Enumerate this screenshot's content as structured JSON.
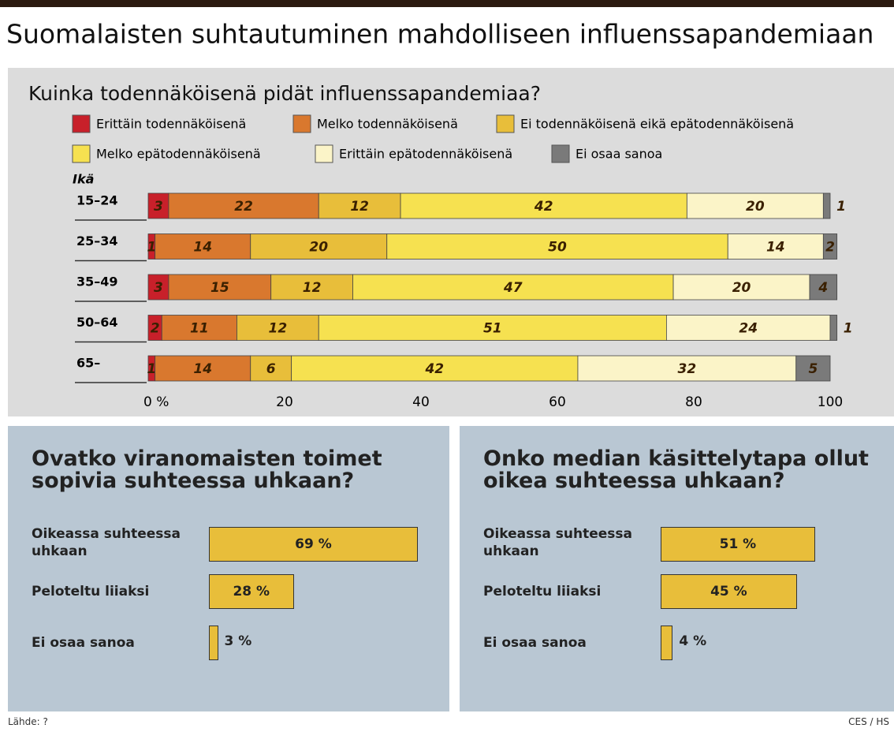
{
  "title": "Suomalaisten suhtautuminen mahdolliseen influenssapandemiaan",
  "source": "Lähde: ?",
  "credit": "CES / HS",
  "chart_data": [
    {
      "type": "stacked-bar-horizontal",
      "title": "Kuinka todennäköisenä pidät influenssapandemiaa?",
      "y_label": "Ikä",
      "categories": [
        "15–24",
        "25–34",
        "35–49",
        "50–64",
        "65–"
      ],
      "series": [
        {
          "name": "Erittäin todennäköisenä",
          "color": "#c8202a",
          "values": [
            3,
            1,
            3,
            2,
            1
          ]
        },
        {
          "name": "Melko todennäköisenä",
          "color": "#d9782e",
          "values": [
            22,
            14,
            15,
            11,
            14
          ]
        },
        {
          "name": "Ei todennäköisenä eikä epätodennäköisenä",
          "color": "#e8be3a",
          "values": [
            12,
            20,
            12,
            12,
            6
          ]
        },
        {
          "name": "Melko epätodennäköisenä",
          "color": "#f6e150",
          "values": [
            42,
            50,
            47,
            51,
            42
          ]
        },
        {
          "name": "Erittäin epätodennäköisenä",
          "color": "#fbf4c8",
          "values": [
            20,
            14,
            20,
            24,
            32
          ]
        },
        {
          "name": "Ei osaa sanoa",
          "color": "#7a7a7a",
          "values": [
            1,
            2,
            4,
            1,
            5
          ]
        }
      ],
      "xlim": [
        0,
        100
      ],
      "xticks": [
        {
          "value": 0,
          "label": "0 %"
        },
        20,
        40,
        60,
        80,
        100
      ]
    },
    {
      "type": "bar-horizontal",
      "title": "Ovatko viranomaisten toimet sopivia suhteessa  uhkaan?",
      "categories": [
        "Oikeassa suhteessa uhkaan",
        "Peloteltu liiaksi",
        "Ei osaa sanoa"
      ],
      "values": [
        69,
        28,
        3
      ],
      "value_labels": [
        "69 %",
        "28 %",
        "3 %"
      ],
      "color": "#e8be3a"
    },
    {
      "type": "bar-horizontal",
      "title": "Onko median käsittelytapa ollut oikea suhteessa uhkaan?",
      "categories": [
        "Oikeassa suhteessa uhkaan",
        "Peloteltu liiaksi",
        "Ei osaa sanoa"
      ],
      "values": [
        51,
        45,
        4
      ],
      "value_labels": [
        "51 %",
        "45 %",
        "4 %"
      ],
      "color": "#e8be3a"
    }
  ]
}
